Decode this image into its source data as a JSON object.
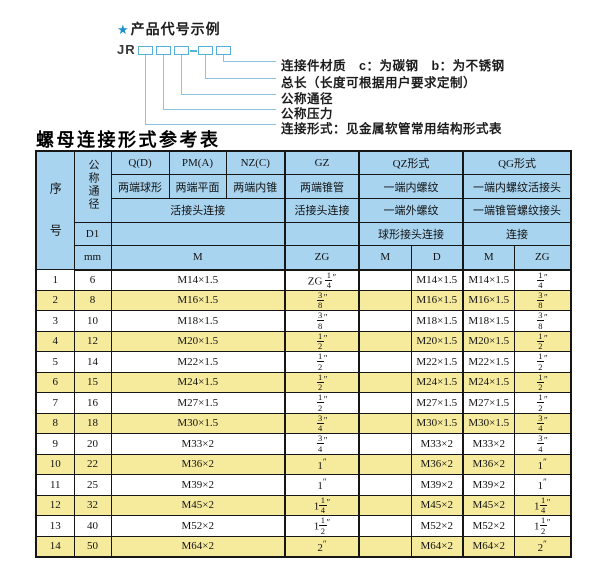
{
  "diagram": {
    "star_icon": "★",
    "title": "产品代号示例",
    "prefix": "JR",
    "labels": [
      "连接件材质　c：为碳钢　b：为不锈钢",
      "总长（长度可根据用户要求定制）",
      "公称通径",
      "公称压力",
      "连接形式：见金属软管常用结构形式表"
    ]
  },
  "table": {
    "title": "螺母连接形式参考表",
    "header": {
      "seq_label": "序号",
      "diameter_label": "公称通径",
      "d1_label": "D1",
      "mm_label": "mm",
      "groups": [
        "Q(D)",
        "PM(A)",
        "NZ(C)",
        "GZ",
        "QZ形式",
        "QG形式"
      ],
      "end_types": [
        "两端球形",
        "两端平面",
        "两端内锥",
        "两端锥管",
        "一端内螺纹",
        "一端内螺纹活接头"
      ],
      "connection_row": [
        "活接头连接",
        "活接头连接",
        "一端外螺纹",
        "一端锥管螺纹接头"
      ],
      "connection_row2": [
        "球形接头连接",
        "连接"
      ],
      "thread_units": [
        "M",
        "ZG",
        "M",
        "D",
        "M",
        "ZG"
      ]
    },
    "rows": [
      [
        "1",
        "6",
        "M14×1.5",
        "ZG {1/4}″",
        "",
        "M14×1.5",
        "M14×1.5",
        "{1/4}″"
      ],
      [
        "2",
        "8",
        "M16×1.5",
        "{3/8}″",
        "",
        "M16×1.5",
        "M16×1.5",
        "{3/8}″"
      ],
      [
        "3",
        "10",
        "M18×1.5",
        "{3/8}″",
        "",
        "M18×1.5",
        "M18×1.5",
        "{3/8}″"
      ],
      [
        "4",
        "12",
        "M20×1.5",
        "{1/2}″",
        "",
        "M20×1.5",
        "M20×1.5",
        "{1/2}″"
      ],
      [
        "5",
        "14",
        "M22×1.5",
        "{1/2}″",
        "",
        "M22×1.5",
        "M22×1.5",
        "{1/2}″"
      ],
      [
        "6",
        "15",
        "M24×1.5",
        "{1/2}″",
        "",
        "M24×1.5",
        "M24×1.5",
        "{1/2}″"
      ],
      [
        "7",
        "16",
        "M27×1.5",
        "{1/2}″",
        "",
        "M27×1.5",
        "M27×1.5",
        "{1/2}″"
      ],
      [
        "8",
        "18",
        "M30×1.5",
        "{3/4}″",
        "",
        "M30×1.5",
        "M30×1.5",
        "{3/4}″"
      ],
      [
        "9",
        "20",
        "M33×2",
        "{3/4}″",
        "",
        "M33×2",
        "M33×2",
        "{3/4}″"
      ],
      [
        "10",
        "22",
        "M36×2",
        "1″",
        "",
        "M36×2",
        "M36×2",
        "1″"
      ],
      [
        "11",
        "25",
        "M39×2",
        "1″",
        "",
        "M39×2",
        "M39×2",
        "1″"
      ],
      [
        "12",
        "32",
        "M45×2",
        "1{1/4}″",
        "",
        "M45×2",
        "M45×2",
        "1{1/4}″"
      ],
      [
        "13",
        "40",
        "M52×2",
        "1{1/2}″",
        "",
        "M52×2",
        "M52×2",
        "1{1/2}″"
      ],
      [
        "14",
        "50",
        "M64×2",
        "2″",
        "",
        "M64×2",
        "M64×2",
        "2″"
      ]
    ]
  },
  "colors": {
    "header_bg": "#a9d4ef",
    "row_alt_bg": "#f6eb9d",
    "row_bg": "#ffffff",
    "border": "#161616",
    "diagram_line": "#8cc3dc",
    "box_border": "#54b2d8",
    "star_color": "#1e8fc8"
  }
}
